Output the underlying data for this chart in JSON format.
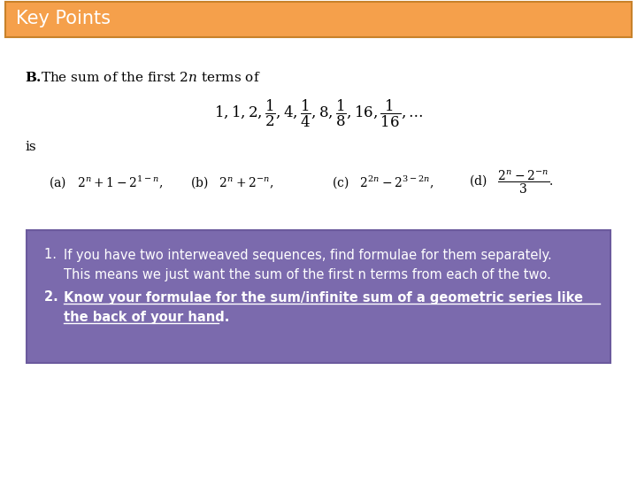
{
  "title": "Key Points",
  "title_bg": "#F5A04B",
  "title_text_color": "#FFFFFF",
  "main_bg": "#FFFFFF",
  "box_bg": "#7B6AAD",
  "box_text_color": "#FFFFFF",
  "box_border_color": "#6B5A9D",
  "point1_line1": "If you have two interweaved sequences, find formulae for them separately.",
  "point1_line2": "This means we just want the sum of the first n terms from each of the two.",
  "point2_line1": "Know your formulae for the sum/infinite sum of a geometric series like",
  "point2_line2": "the back of your hand",
  "section_b_prefix": "B.",
  "section_b_rest": "  The sum of the first $2n$ terms of",
  "is_text": "is",
  "sequence": "$1, 1, 2, \\dfrac{1}{2}, 4, \\dfrac{1}{4}, 8, \\dfrac{1}{8}, 16, \\dfrac{1}{16}, \\ldots$",
  "ans_a": "(a)   $2^n + 1 - 2^{1-n}$,",
  "ans_b": "(b)   $2^n + 2^{-n}$,",
  "ans_c": "(c)   $2^{2n} - 2^{3-2n}$,",
  "ans_d": "(d)   $\\dfrac{2^n - 2^{-n}}{3}$.",
  "figw": 7.2,
  "figh": 5.4,
  "dpi": 100
}
